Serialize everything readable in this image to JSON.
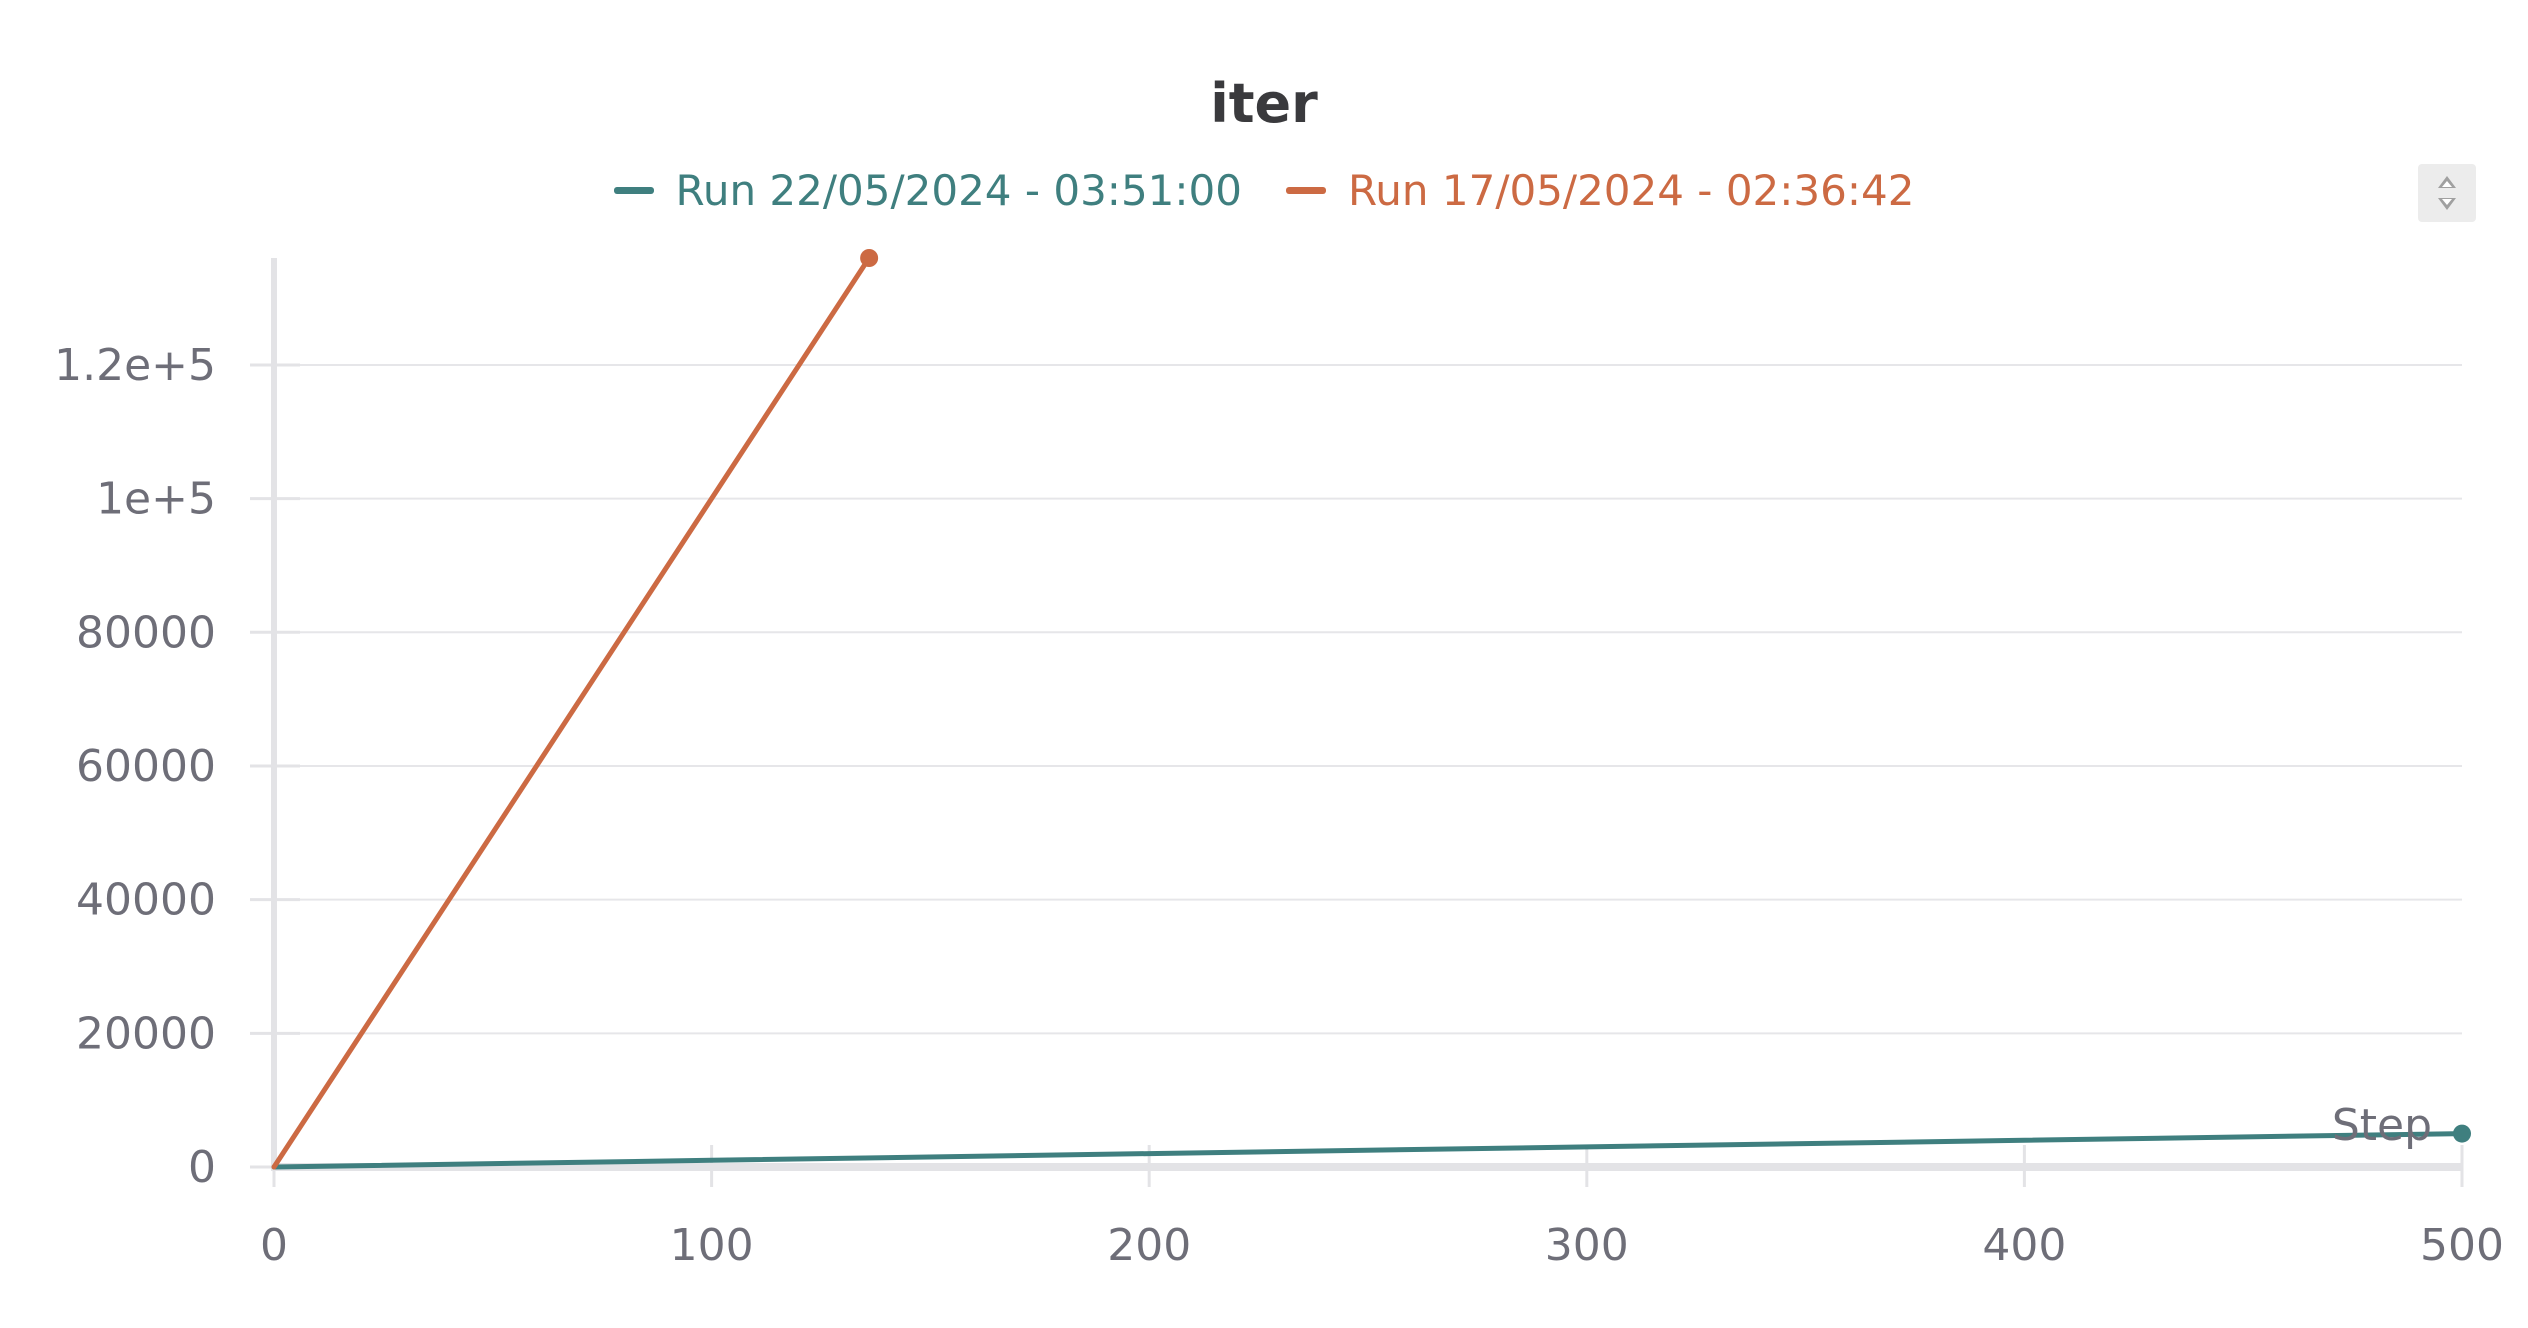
{
  "chart_data": {
    "type": "line",
    "title": "iter",
    "xlabel": "Step",
    "ylabel": "",
    "xlim": [
      0,
      500
    ],
    "ylim": [
      0,
      136000
    ],
    "grid": true,
    "legend": "top-center",
    "x_ticks": [
      "0",
      "100",
      "200",
      "300",
      "400",
      "500"
    ],
    "x_tick_values": [
      0,
      100,
      200,
      300,
      400,
      500
    ],
    "y_ticks": [
      "0",
      "20000",
      "40000",
      "60000",
      "80000",
      "1e+5",
      "1.2e+5"
    ],
    "y_tick_values": [
      0,
      20000,
      40000,
      60000,
      80000,
      100000,
      120000
    ],
    "series": [
      {
        "name": "Run 22/05/2024 - 03:51:00",
        "color": "#3f7f7f",
        "x": [
          0,
          100,
          200,
          300,
          400,
          500
        ],
        "y": [
          0,
          1000,
          2000,
          3000,
          4000,
          5000
        ]
      },
      {
        "name": "Run 17/05/2024 - 02:36:42",
        "color": "#cc6a43",
        "x": [
          0,
          136
        ],
        "y": [
          0,
          136000
        ]
      }
    ]
  }
}
